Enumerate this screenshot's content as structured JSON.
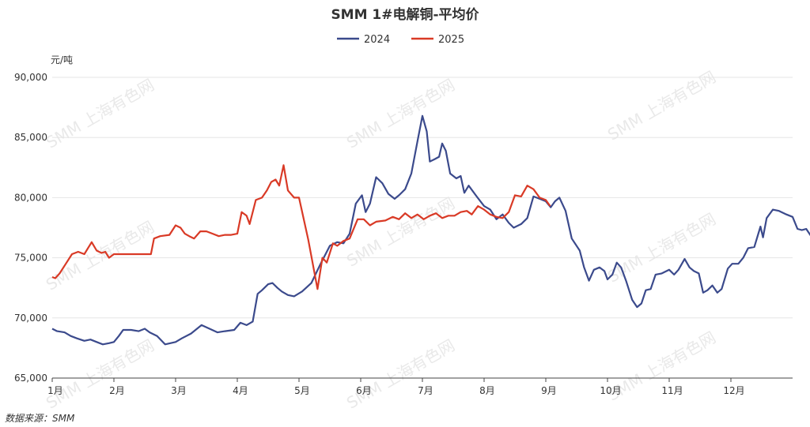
{
  "chart_data": {
    "type": "line",
    "title": "SMM 1#电解铜-平均价",
    "unit_label": "元/吨",
    "source": "数据来源：SMM",
    "watermark": "SMM 上海有色网",
    "legend_position": "top-center",
    "ylim": [
      65000,
      90000
    ],
    "yticks": [
      "65,000",
      "70,000",
      "75,000",
      "80,000",
      "85,000",
      "90,000"
    ],
    "ytick_values": [
      65000,
      70000,
      75000,
      80000,
      85000,
      90000
    ],
    "xlim": [
      0,
      12
    ],
    "x_unit": "month",
    "months": [
      "1月",
      "2月",
      "3月",
      "4月",
      "5月",
      "6月",
      "7月",
      "8月",
      "9月",
      "10月",
      "11月",
      "12月"
    ],
    "grid": true,
    "series": [
      {
        "name": "2024",
        "color": "#3b4a8c",
        "points": [
          [
            0.0,
            69100
          ],
          [
            0.08,
            68900
          ],
          [
            0.2,
            68800
          ],
          [
            0.3,
            68500
          ],
          [
            0.4,
            68300
          ],
          [
            0.52,
            68100
          ],
          [
            0.62,
            68200
          ],
          [
            0.72,
            68000
          ],
          [
            0.82,
            67800
          ],
          [
            0.92,
            67900
          ],
          [
            1.0,
            68000
          ],
          [
            1.08,
            68500
          ],
          [
            1.15,
            69000
          ],
          [
            1.28,
            69000
          ],
          [
            1.4,
            68900
          ],
          [
            1.5,
            69100
          ],
          [
            1.58,
            68800
          ],
          [
            1.7,
            68500
          ],
          [
            1.83,
            67800
          ],
          [
            2.0,
            68000
          ],
          [
            2.1,
            68300
          ],
          [
            2.25,
            68700
          ],
          [
            2.42,
            69400
          ],
          [
            2.55,
            69100
          ],
          [
            2.68,
            68800
          ],
          [
            2.8,
            68900
          ],
          [
            2.95,
            69000
          ],
          [
            3.05,
            69600
          ],
          [
            3.15,
            69400
          ],
          [
            3.25,
            69700
          ],
          [
            3.33,
            72000
          ],
          [
            3.4,
            72300
          ],
          [
            3.5,
            72800
          ],
          [
            3.57,
            72900
          ],
          [
            3.65,
            72500
          ],
          [
            3.72,
            72200
          ],
          [
            3.82,
            71900
          ],
          [
            3.92,
            71800
          ],
          [
            4.05,
            72200
          ],
          [
            4.2,
            72900
          ],
          [
            4.35,
            74500
          ],
          [
            4.5,
            76000
          ],
          [
            4.62,
            76300
          ],
          [
            4.72,
            76200
          ],
          [
            4.82,
            77000
          ],
          [
            4.92,
            79500
          ],
          [
            5.02,
            80200
          ],
          [
            5.08,
            78800
          ],
          [
            5.15,
            79500
          ],
          [
            5.25,
            81700
          ],
          [
            5.35,
            81200
          ],
          [
            5.45,
            80300
          ],
          [
            5.55,
            79900
          ],
          [
            5.62,
            80200
          ],
          [
            5.72,
            80700
          ],
          [
            5.82,
            82000
          ],
          [
            5.92,
            84700
          ],
          [
            6.0,
            86800
          ],
          [
            6.07,
            85500
          ],
          [
            6.12,
            83000
          ],
          [
            6.2,
            83200
          ],
          [
            6.27,
            83400
          ],
          [
            6.32,
            84500
          ],
          [
            6.38,
            83900
          ],
          [
            6.45,
            82000
          ],
          [
            6.55,
            81600
          ],
          [
            6.62,
            81800
          ],
          [
            6.68,
            80400
          ],
          [
            6.75,
            81000
          ],
          [
            6.88,
            80100
          ],
          [
            7.0,
            79300
          ],
          [
            7.1,
            79000
          ],
          [
            7.2,
            78200
          ],
          [
            7.3,
            78600
          ],
          [
            7.4,
            77900
          ],
          [
            7.48,
            77500
          ],
          [
            7.6,
            77800
          ],
          [
            7.7,
            78300
          ],
          [
            7.8,
            80100
          ],
          [
            7.9,
            79900
          ],
          [
            8.0,
            79700
          ],
          [
            8.08,
            79200
          ],
          [
            8.15,
            79700
          ],
          [
            8.22,
            80000
          ],
          [
            8.32,
            78900
          ],
          [
            8.42,
            76600
          ],
          [
            8.55,
            75600
          ],
          [
            8.62,
            74200
          ],
          [
            8.7,
            73100
          ],
          [
            8.78,
            74000
          ],
          [
            8.87,
            74200
          ],
          [
            8.95,
            73900
          ],
          [
            9.0,
            73200
          ],
          [
            9.08,
            73600
          ],
          [
            9.15,
            74600
          ],
          [
            9.22,
            74200
          ],
          [
            9.3,
            73100
          ],
          [
            9.4,
            71500
          ],
          [
            9.48,
            70900
          ],
          [
            9.55,
            71200
          ],
          [
            9.62,
            72300
          ],
          [
            9.7,
            72400
          ],
          [
            9.78,
            73600
          ],
          [
            9.88,
            73700
          ],
          [
            10.0,
            74000
          ],
          [
            10.08,
            73600
          ],
          [
            10.15,
            74000
          ],
          [
            10.25,
            74900
          ],
          [
            10.33,
            74200
          ],
          [
            10.4,
            73900
          ],
          [
            10.48,
            73700
          ],
          [
            10.55,
            72100
          ],
          [
            10.62,
            72300
          ],
          [
            10.7,
            72700
          ],
          [
            10.78,
            72100
          ],
          [
            10.85,
            72400
          ],
          [
            10.95,
            74100
          ],
          [
            11.02,
            74500
          ],
          [
            11.12,
            74500
          ],
          [
            11.2,
            75000
          ],
          [
            11.28,
            75800
          ],
          [
            11.38,
            75900
          ],
          [
            11.48,
            77600
          ],
          [
            11.52,
            76700
          ],
          [
            11.58,
            78300
          ],
          [
            11.68,
            79000
          ],
          [
            11.78,
            78900
          ],
          [
            11.9,
            78600
          ],
          [
            12.0,
            78400
          ],
          [
            12.08,
            77400
          ],
          [
            12.15,
            77300
          ],
          [
            12.22,
            77400
          ],
          [
            12.3,
            76800
          ],
          [
            12.38,
            77200
          ],
          [
            12.45,
            76900
          ]
        ]
      },
      {
        "name": "2025",
        "color": "#d93a26",
        "points": [
          [
            0.0,
            73400
          ],
          [
            0.05,
            73300
          ],
          [
            0.12,
            73700
          ],
          [
            0.22,
            74500
          ],
          [
            0.32,
            75300
          ],
          [
            0.42,
            75500
          ],
          [
            0.52,
            75300
          ],
          [
            0.58,
            75800
          ],
          [
            0.64,
            76300
          ],
          [
            0.72,
            75600
          ],
          [
            0.8,
            75400
          ],
          [
            0.86,
            75500
          ],
          [
            0.92,
            75000
          ],
          [
            1.0,
            75300
          ],
          [
            1.3,
            75300
          ],
          [
            1.6,
            75300
          ],
          [
            1.65,
            76600
          ],
          [
            1.75,
            76800
          ],
          [
            1.9,
            76900
          ],
          [
            2.0,
            77700
          ],
          [
            2.08,
            77500
          ],
          [
            2.15,
            77000
          ],
          [
            2.22,
            76800
          ],
          [
            2.3,
            76600
          ],
          [
            2.4,
            77200
          ],
          [
            2.5,
            77200
          ],
          [
            2.6,
            77000
          ],
          [
            2.7,
            76800
          ],
          [
            2.8,
            76900
          ],
          [
            2.9,
            76900
          ],
          [
            3.0,
            77000
          ],
          [
            3.07,
            78800
          ],
          [
            3.15,
            78500
          ],
          [
            3.2,
            77800
          ],
          [
            3.3,
            79800
          ],
          [
            3.4,
            80000
          ],
          [
            3.48,
            80600
          ],
          [
            3.55,
            81300
          ],
          [
            3.62,
            81500
          ],
          [
            3.68,
            81000
          ],
          [
            3.75,
            82700
          ],
          [
            3.82,
            80600
          ],
          [
            3.92,
            80000
          ],
          [
            4.0,
            80000
          ],
          [
            4.15,
            76500
          ],
          [
            4.3,
            72400
          ],
          [
            4.38,
            75000
          ],
          [
            4.45,
            74600
          ],
          [
            4.55,
            76200
          ],
          [
            4.62,
            76000
          ],
          [
            4.72,
            76400
          ],
          [
            4.82,
            76600
          ],
          [
            4.95,
            78200
          ],
          [
            5.05,
            78200
          ],
          [
            5.15,
            77700
          ],
          [
            5.25,
            78000
          ],
          [
            5.4,
            78100
          ],
          [
            5.52,
            78400
          ],
          [
            5.62,
            78200
          ],
          [
            5.72,
            78700
          ],
          [
            5.82,
            78300
          ],
          [
            5.92,
            78600
          ],
          [
            6.02,
            78200
          ],
          [
            6.12,
            78500
          ],
          [
            6.22,
            78700
          ],
          [
            6.32,
            78300
          ],
          [
            6.42,
            78500
          ],
          [
            6.52,
            78500
          ],
          [
            6.62,
            78800
          ],
          [
            6.72,
            78900
          ],
          [
            6.8,
            78600
          ],
          [
            6.9,
            79300
          ],
          [
            7.0,
            79000
          ],
          [
            7.1,
            78600
          ],
          [
            7.2,
            78400
          ],
          [
            7.3,
            78300
          ],
          [
            7.4,
            78800
          ],
          [
            7.5,
            80200
          ],
          [
            7.6,
            80100
          ],
          [
            7.7,
            81000
          ],
          [
            7.8,
            80700
          ],
          [
            7.9,
            80000
          ],
          [
            8.0,
            79800
          ],
          [
            8.07,
            79300
          ]
        ]
      }
    ]
  }
}
